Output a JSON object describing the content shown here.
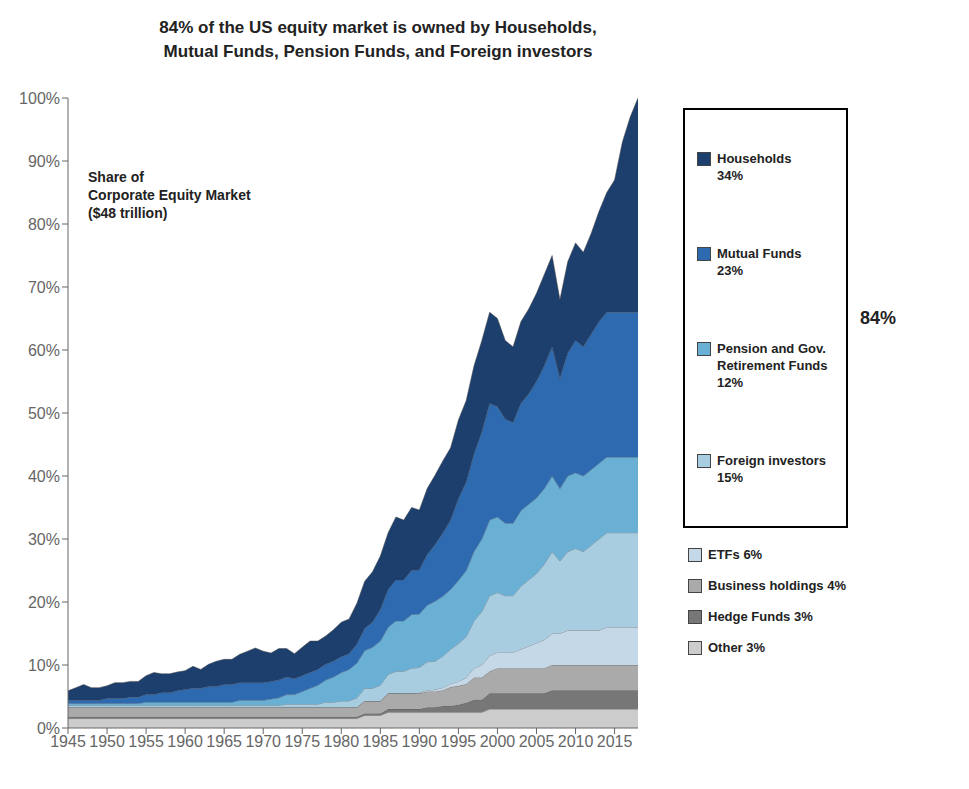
{
  "chart_data": {
    "type": "area",
    "stacked": true,
    "title": "84% of the US equity market is owned by Households,\nMutual Funds, Pension Funds, and Foreign investors",
    "annotations": [
      "Share of\nCorporate Equity Market\n($48 trillion)",
      "84%"
    ],
    "legend": "right",
    "grid": false,
    "x": [
      1945,
      1946,
      1947,
      1948,
      1949,
      1950,
      1951,
      1952,
      1953,
      1954,
      1955,
      1956,
      1957,
      1958,
      1959,
      1960,
      1961,
      1962,
      1963,
      1964,
      1965,
      1966,
      1967,
      1968,
      1969,
      1970,
      1971,
      1972,
      1973,
      1974,
      1975,
      1976,
      1977,
      1978,
      1979,
      1980,
      1981,
      1982,
      1983,
      1984,
      1985,
      1986,
      1987,
      1988,
      1989,
      1990,
      1991,
      1992,
      1993,
      1994,
      1995,
      1996,
      1997,
      1998,
      1999,
      2000,
      2001,
      2002,
      2003,
      2004,
      2005,
      2006,
      2007,
      2008,
      2009,
      2010,
      2011,
      2012,
      2013,
      2014,
      2015,
      2016,
      2017,
      2018
    ],
    "xlim": [
      1945,
      2018
    ],
    "xticks": [
      1945,
      1950,
      1955,
      1960,
      1965,
      1970,
      1975,
      1980,
      1985,
      1990,
      1995,
      2000,
      2005,
      2010,
      2015
    ],
    "ylim": [
      0,
      100
    ],
    "yticks": [
      {
        "value": 0,
        "label": "0%"
      },
      {
        "value": 10,
        "label": "10%"
      },
      {
        "value": 20,
        "label": "20%"
      },
      {
        "value": 30,
        "label": "30%"
      },
      {
        "value": 40,
        "label": "40%"
      },
      {
        "value": 50,
        "label": "50%"
      },
      {
        "value": 60,
        "label": "60%"
      },
      {
        "value": 70,
        "label": "70%"
      },
      {
        "value": 80,
        "label": "80%"
      },
      {
        "value": 90,
        "label": "90%"
      },
      {
        "value": 100,
        "label": "100%"
      }
    ],
    "series": [
      {
        "name": "Other 3%",
        "color": "#cccccc",
        "values": [
          1.5,
          1.5,
          1.5,
          1.5,
          1.5,
          1.5,
          1.5,
          1.5,
          1.5,
          1.5,
          1.5,
          1.5,
          1.5,
          1.5,
          1.5,
          1.5,
          1.5,
          1.5,
          1.5,
          1.5,
          1.5,
          1.5,
          1.5,
          1.5,
          1.5,
          1.5,
          1.5,
          1.5,
          1.5,
          1.5,
          1.5,
          1.5,
          1.5,
          1.5,
          1.5,
          1.5,
          1.5,
          1.5,
          2.0,
          2.0,
          2.0,
          2.5,
          2.5,
          2.5,
          2.5,
          2.5,
          2.5,
          2.5,
          2.5,
          2.5,
          2.5,
          2.5,
          2.5,
          2.5,
          3.0,
          3.0,
          3.0,
          3.0,
          3.0,
          3.0,
          3.0,
          3.0,
          3.0,
          3.0,
          3.0,
          3.0,
          3.0,
          3.0,
          3.0,
          3.0,
          3.0,
          3.0,
          3.0,
          3.0
        ]
      },
      {
        "name": "Hedge Funds 3%",
        "color": "#777777",
        "values": [
          0.3,
          0.3,
          0.3,
          0.3,
          0.3,
          0.3,
          0.3,
          0.3,
          0.3,
          0.3,
          0.3,
          0.3,
          0.3,
          0.3,
          0.3,
          0.3,
          0.3,
          0.3,
          0.3,
          0.3,
          0.3,
          0.3,
          0.3,
          0.3,
          0.3,
          0.3,
          0.3,
          0.3,
          0.3,
          0.3,
          0.3,
          0.3,
          0.3,
          0.3,
          0.3,
          0.3,
          0.3,
          0.3,
          0.3,
          0.3,
          0.3,
          0.5,
          0.5,
          0.5,
          0.5,
          0.5,
          0.8,
          0.8,
          1.0,
          1.0,
          1.2,
          1.5,
          2.0,
          2.0,
          2.5,
          2.5,
          2.5,
          2.5,
          2.5,
          2.5,
          2.5,
          2.5,
          3.0,
          3.0,
          3.0,
          3.0,
          3.0,
          3.0,
          3.0,
          3.0,
          3.0,
          3.0,
          3.0,
          3.0
        ]
      },
      {
        "name": "Business holdings 4%",
        "color": "#aaaaaa",
        "values": [
          1.5,
          1.5,
          1.5,
          1.5,
          1.5,
          1.5,
          1.5,
          1.5,
          1.5,
          1.5,
          1.5,
          1.5,
          1.5,
          1.5,
          1.5,
          1.5,
          1.5,
          1.5,
          1.5,
          1.5,
          1.5,
          1.5,
          1.5,
          1.5,
          1.5,
          1.5,
          1.5,
          1.5,
          1.5,
          1.5,
          1.5,
          1.5,
          1.5,
          1.5,
          1.5,
          1.5,
          1.5,
          1.5,
          2.0,
          2.0,
          2.0,
          2.5,
          2.5,
          2.5,
          2.5,
          2.5,
          2.5,
          2.5,
          2.5,
          3.0,
          3.0,
          3.0,
          3.5,
          3.5,
          3.5,
          4.0,
          4.0,
          4.0,
          4.0,
          4.0,
          4.0,
          4.0,
          4.0,
          4.0,
          4.0,
          4.0,
          4.0,
          4.0,
          4.0,
          4.0,
          4.0,
          4.0,
          4.0,
          4.0
        ]
      },
      {
        "name": "ETFs 6%",
        "color": "#c5d8e8",
        "values": [
          0.0,
          0.0,
          0.0,
          0.0,
          0.0,
          0.0,
          0.0,
          0.0,
          0.0,
          0.0,
          0.0,
          0.0,
          0.0,
          0.0,
          0.0,
          0.0,
          0.0,
          0.0,
          0.0,
          0.0,
          0.0,
          0.0,
          0.0,
          0.0,
          0.0,
          0.0,
          0.0,
          0.0,
          0.0,
          0.0,
          0.0,
          0.0,
          0.0,
          0.0,
          0.0,
          0.0,
          0.0,
          0.0,
          0.0,
          0.0,
          0.0,
          0.0,
          0.0,
          0.0,
          0.0,
          0.1,
          0.2,
          0.3,
          0.4,
          0.5,
          0.7,
          1.0,
          1.5,
          2.0,
          2.5,
          2.5,
          2.5,
          2.5,
          3.0,
          3.5,
          4.0,
          4.5,
          5.0,
          5.0,
          5.5,
          5.5,
          5.5,
          5.5,
          5.5,
          6.0,
          6.0,
          6.0,
          6.0,
          6.0
        ]
      },
      {
        "name": "Foreign investors\n15%",
        "color": "#a8cce0",
        "values": [
          0.3,
          0.3,
          0.3,
          0.3,
          0.3,
          0.3,
          0.3,
          0.3,
          0.3,
          0.3,
          0.3,
          0.3,
          0.3,
          0.3,
          0.3,
          0.3,
          0.3,
          0.3,
          0.3,
          0.3,
          0.3,
          0.3,
          0.3,
          0.3,
          0.3,
          0.3,
          0.3,
          0.3,
          0.5,
          0.5,
          0.5,
          0.5,
          0.5,
          0.8,
          0.8,
          1.0,
          1.0,
          1.5,
          2.0,
          2.0,
          2.5,
          3.0,
          3.5,
          3.5,
          4.0,
          4.0,
          4.5,
          4.5,
          5.0,
          5.5,
          6.0,
          6.5,
          7.5,
          8.5,
          9.5,
          9.5,
          9.0,
          9.0,
          10.0,
          10.5,
          11.0,
          12.0,
          13.0,
          11.5,
          12.5,
          13.0,
          12.5,
          13.5,
          14.5,
          15.0,
          15.0,
          15.0,
          15.0,
          15.0
        ]
      },
      {
        "name": "Pension and Gov.\nRetirement Funds\n12%",
        "color": "#6aafd4",
        "values": [
          0.3,
          0.3,
          0.3,
          0.3,
          0.3,
          0.3,
          0.3,
          0.3,
          0.3,
          0.3,
          0.5,
          0.5,
          0.5,
          0.5,
          0.5,
          0.5,
          0.5,
          0.5,
          0.5,
          0.5,
          0.5,
          0.5,
          0.8,
          0.8,
          0.8,
          0.8,
          1.0,
          1.2,
          1.5,
          1.5,
          2.0,
          2.5,
          3.0,
          3.5,
          4.0,
          4.5,
          5.0,
          5.5,
          6.0,
          6.5,
          7.0,
          7.5,
          8.0,
          8.0,
          8.5,
          8.5,
          9.0,
          9.5,
          9.5,
          9.5,
          10.0,
          10.5,
          11.0,
          11.5,
          12.0,
          12.0,
          11.5,
          11.5,
          12.0,
          12.0,
          12.0,
          12.0,
          12.0,
          11.5,
          12.0,
          12.0,
          12.0,
          12.0,
          12.0,
          12.0,
          12.0,
          12.0,
          12.0,
          12.0
        ]
      },
      {
        "name": "Mutual Funds\n23%",
        "color": "#2d6ab0",
        "values": [
          0.5,
          0.5,
          0.5,
          0.5,
          0.5,
          0.8,
          0.8,
          0.8,
          1.0,
          1.0,
          1.2,
          1.2,
          1.5,
          1.5,
          1.8,
          2.0,
          2.2,
          2.2,
          2.5,
          2.5,
          2.8,
          2.8,
          2.8,
          2.8,
          2.8,
          2.8,
          2.8,
          2.8,
          2.8,
          2.5,
          2.5,
          2.5,
          2.5,
          2.5,
          2.5,
          2.5,
          2.5,
          3.0,
          3.5,
          4.0,
          5.0,
          6.0,
          6.5,
          6.5,
          7.0,
          7.0,
          8.0,
          9.0,
          10.0,
          11.0,
          13.0,
          14.0,
          15.5,
          17.0,
          18.5,
          17.5,
          16.5,
          16.0,
          17.0,
          17.5,
          18.5,
          19.5,
          20.5,
          17.5,
          19.5,
          21.0,
          20.5,
          21.5,
          22.5,
          23.0,
          23.0,
          23.0,
          23.0,
          23.0
        ]
      },
      {
        "name": "Households\n34%",
        "color": "#1c3f6e",
        "values": [
          1.5,
          2.0,
          2.5,
          2.0,
          2.0,
          2.0,
          2.5,
          2.5,
          2.5,
          2.5,
          3.0,
          3.5,
          3.0,
          3.0,
          3.0,
          3.0,
          3.5,
          3.0,
          3.5,
          4.0,
          4.0,
          4.0,
          4.5,
          5.0,
          5.5,
          5.0,
          4.5,
          5.0,
          4.5,
          4.0,
          4.5,
          5.0,
          4.5,
          4.5,
          5.0,
          5.5,
          5.5,
          6.5,
          7.5,
          8.0,
          8.5,
          9.0,
          10.0,
          9.5,
          10.0,
          9.5,
          10.5,
          11.0,
          11.5,
          11.5,
          12.5,
          13.0,
          14.0,
          14.5,
          14.5,
          14.0,
          12.5,
          12.0,
          13.0,
          13.5,
          14.0,
          14.5,
          14.5,
          12.5,
          14.5,
          15.5,
          15.0,
          16.0,
          17.5,
          19.0,
          21.0,
          27.0,
          31.0,
          34.0
        ]
      }
    ]
  }
}
